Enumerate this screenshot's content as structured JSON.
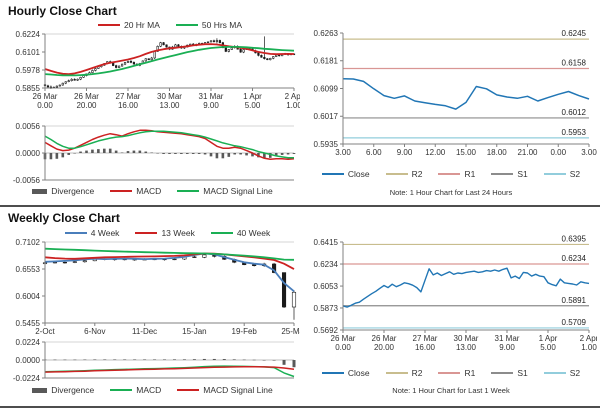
{
  "sections": [
    {
      "title": "Hourly Close Chart",
      "note": "Note: 1 Hour Chart for Last 24 Hours"
    },
    {
      "title": "Weekly Close Chart",
      "note": "Note: 1 Hour Chart for Last 1 Week"
    }
  ],
  "colors": {
    "red": "#cc2222",
    "green": "#1aaf54",
    "close_blue": "#2176b5",
    "week4_blue": "#4a7ebb",
    "r2_olive": "#c8bd8e",
    "r1_rose": "#d99694",
    "s1_gray": "#8c8c8c",
    "s2_lightblue": "#92cddc",
    "divergence_gray": "#595959",
    "candle_black": "#1a1a1a"
  },
  "chart_data": [
    {
      "id": "hourly-price",
      "type": "candlestick",
      "ylim": [
        0.5855,
        0.6224
      ],
      "yticks": [
        "0.6224",
        "0.6101",
        "0.5978",
        "0.5855"
      ],
      "xticks": [
        [
          "26 Mar",
          "0.00"
        ],
        [
          "26 Mar",
          "20.00"
        ],
        [
          "27 Mar",
          "16.00"
        ],
        [
          "30 Mar",
          "13.00"
        ],
        [
          "31 Mar",
          "9.00"
        ],
        [
          "1 Apr",
          "5.00"
        ],
        [
          "2 Apr",
          "1.00"
        ]
      ],
      "top_border": true,
      "candles": {
        "open0": 0.5878,
        "amp": 0.001,
        "specials": {
          "2": [
            0.5872,
            0.5848
          ],
          "58": [
            0.6195,
            0.616
          ],
          "74": [
            0.6208,
            0.605
          ]
        },
        "closes": [
          0.587,
          0.5862,
          0.5855,
          0.586,
          0.5868,
          0.5875,
          0.5888,
          0.5898,
          0.5905,
          0.5915,
          0.5908,
          0.5915,
          0.5928,
          0.594,
          0.5952,
          0.596,
          0.5975,
          0.5988,
          0.6,
          0.601,
          0.6022,
          0.6035,
          0.6028,
          0.6008,
          0.5995,
          0.6005,
          0.6018,
          0.603,
          0.6038,
          0.603,
          0.6018,
          0.601,
          0.6022,
          0.604,
          0.6055,
          0.6048,
          0.606,
          0.6105,
          0.614,
          0.6165,
          0.615,
          0.6135,
          0.612,
          0.6135,
          0.615,
          0.614,
          0.6128,
          0.6135,
          0.6148,
          0.6155,
          0.6145,
          0.6152,
          0.616,
          0.6155,
          0.6165,
          0.617,
          0.6178,
          0.6172,
          0.618,
          0.6165,
          0.613,
          0.6105,
          0.6118,
          0.613,
          0.614,
          0.612,
          0.61,
          0.6118,
          0.613,
          0.6122,
          0.611,
          0.6095,
          0.6078,
          0.6065,
          0.6055,
          0.6048,
          0.6058,
          0.607,
          0.608,
          0.6075,
          0.6085,
          0.609,
          0.6082,
          0.6088,
          0.6085
        ]
      },
      "series": [
        {
          "name": "20 Hr MA",
          "color": "#cc2222",
          "w": 1.8,
          "values": [
            0.5985,
            0.5972,
            0.596,
            0.5952,
            0.595,
            0.5955,
            0.5965,
            0.5978,
            0.5992,
            0.6005,
            0.6018,
            0.6028,
            0.6035,
            0.6042,
            0.605,
            0.606,
            0.6072,
            0.6088,
            0.6102,
            0.6112,
            0.612,
            0.6126,
            0.613,
            0.6135,
            0.614,
            0.6146,
            0.6151,
            0.6154,
            0.6155,
            0.6152,
            0.6146,
            0.614,
            0.6135,
            0.613,
            0.6122,
            0.6112,
            0.6102,
            0.6094,
            0.6088,
            0.6086,
            0.6087,
            0.6088,
            0.6087
          ]
        },
        {
          "name": "50 Hrs MA",
          "color": "#1aaf54",
          "w": 1.8,
          "values": [
            0.595,
            0.5947,
            0.5944,
            0.5942,
            0.5941,
            0.5941,
            0.5943,
            0.5946,
            0.595,
            0.5955,
            0.5961,
            0.5968,
            0.5976,
            0.5985,
            0.5995,
            0.6006,
            0.6017,
            0.6028,
            0.6039,
            0.605,
            0.606,
            0.607,
            0.608,
            0.609,
            0.61,
            0.6108,
            0.6116,
            0.6122,
            0.6128,
            0.6132,
            0.6135,
            0.6136,
            0.6136,
            0.6135,
            0.6133,
            0.613,
            0.6127,
            0.6123,
            0.612,
            0.6117,
            0.6114,
            0.6112,
            0.611
          ]
        }
      ]
    },
    {
      "id": "hourly-macd",
      "type": "bar+line",
      "ylim": [
        -0.0056,
        0.0056
      ],
      "yticks": [
        "0.0056",
        "0.0000",
        "-0.0056"
      ],
      "xticks": [],
      "top_border": true,
      "zero_line": true,
      "bars": {
        "name": "Divergence",
        "color": "#595959",
        "values": [
          -0.0013,
          -0.0013,
          -0.0012,
          -0.0009,
          -0.0004,
          0.0,
          0.0003,
          0.0005,
          0.0007,
          0.0008,
          0.0009,
          0.0009,
          0.0005,
          0.0001,
          0.0004,
          0.0005,
          0.0005,
          0.0003,
          0.0001,
          -0.0001,
          -0.0002,
          -0.0002,
          -0.0002,
          -0.0002,
          -0.0002,
          -0.0002,
          -0.0002,
          -0.0003,
          -0.0007,
          -0.0011,
          -0.0011,
          -0.0008,
          -0.0003,
          -0.0003,
          -0.0005,
          -0.0007,
          -0.0009,
          -0.0011,
          -0.001,
          -0.0006,
          -0.0004,
          -0.0003,
          -0.0002
        ]
      },
      "series": [
        {
          "name": "MACD",
          "color": "#cc2222",
          "w": 1.5,
          "values": [
            0.0022,
            0.0015,
            0.0008,
            0.0005,
            0.0006,
            0.001,
            0.0016,
            0.0022,
            0.0028,
            0.0033,
            0.0037,
            0.004,
            0.0038,
            0.0035,
            0.004,
            0.0044,
            0.0047,
            0.0047,
            0.0046,
            0.0044,
            0.0043,
            0.0042,
            0.0041,
            0.004,
            0.0038,
            0.0036,
            0.0034,
            0.003,
            0.0022,
            0.0014,
            0.001,
            0.001,
            0.0012,
            0.001,
            0.0005,
            0.0,
            -0.0006,
            -0.0011,
            -0.0013,
            -0.0012,
            -0.0012,
            -0.0013,
            -0.0012
          ]
        },
        {
          "name": "MACD Signal Line",
          "color": "#1aaf54",
          "w": 1.5,
          "values": [
            0.0035,
            0.0028,
            0.002,
            0.0014,
            0.001,
            0.001,
            0.0013,
            0.0017,
            0.0021,
            0.0025,
            0.0028,
            0.0031,
            0.0033,
            0.0034,
            0.0036,
            0.0039,
            0.0042,
            0.0044,
            0.0045,
            0.0045,
            0.0045,
            0.0044,
            0.0043,
            0.0042,
            0.004,
            0.0038,
            0.0036,
            0.0033,
            0.0029,
            0.0025,
            0.0021,
            0.0018,
            0.0015,
            0.0013,
            0.001,
            0.0007,
            0.0003,
            0.0,
            -0.0003,
            -0.0006,
            -0.0008,
            -0.001,
            -0.001
          ]
        }
      ]
    },
    {
      "id": "hourly-pivot",
      "type": "line",
      "ylim": [
        0.5935,
        0.6263
      ],
      "yticks": [
        "0.6263",
        "0.6181",
        "0.6099",
        "0.6017",
        "0.5935"
      ],
      "xticks": [
        [
          "3.00"
        ],
        [
          "6.00"
        ],
        [
          "9.00"
        ],
        [
          "12.00"
        ],
        [
          "15.00"
        ],
        [
          "18.00"
        ],
        [
          "21.00"
        ],
        [
          "0.00"
        ],
        [
          "3.00"
        ]
      ],
      "pivots": [
        {
          "label": "R2",
          "value": 0.6245,
          "text": "0.6245",
          "color": "#c8bd8e"
        },
        {
          "label": "R1",
          "value": 0.6158,
          "text": "0.6158",
          "color": "#d99694"
        },
        {
          "label": "S1",
          "value": 0.6012,
          "text": "0.6012",
          "color": "#8c8c8c"
        },
        {
          "label": "S2",
          "value": 0.5953,
          "text": "0.5953",
          "color": "#92cddc"
        }
      ],
      "series": [
        {
          "name": "Close",
          "color": "#2176b5",
          "w": 1.5,
          "values": [
            0.6128,
            0.6127,
            0.612,
            0.6098,
            0.6078,
            0.607,
            0.6077,
            0.6062,
            0.6057,
            0.6052,
            0.6048,
            0.6038,
            0.6058,
            0.6105,
            0.6098,
            0.608,
            0.6074,
            0.607,
            0.6076,
            0.6062,
            0.6072,
            0.6082,
            0.609,
            0.6078,
            0.6068
          ]
        }
      ]
    },
    {
      "id": "weekly-price",
      "type": "candlestick",
      "ylim": [
        0.5455,
        0.7102
      ],
      "yticks": [
        "0.7102",
        "0.6553",
        "0.6004",
        "0.5455"
      ],
      "xticks": [
        [
          "2-Oct"
        ],
        [
          "6-Nov"
        ],
        [
          "11-Dec"
        ],
        [
          "15-Jan"
        ],
        [
          "19-Feb"
        ],
        [
          "25-Mar"
        ]
      ],
      "top_border": true,
      "candles": {
        "open0": 0.666,
        "amp": 0.0035,
        "specials": {
          "24": [
            0.648,
            0.576
          ],
          "25": [
            0.612,
            0.552
          ]
        },
        "closes": [
          0.668,
          0.669,
          0.6685,
          0.67,
          0.672,
          0.676,
          0.6745,
          0.6755,
          0.674,
          0.675,
          0.6748,
          0.6755,
          0.6745,
          0.6755,
          0.68,
          0.679,
          0.684,
          0.681,
          0.675,
          0.669,
          0.664,
          0.662,
          0.6655,
          0.648,
          0.578,
          0.608
        ]
      },
      "series": [
        {
          "name": "4 Week",
          "color": "#4a7ebb",
          "w": 1.8,
          "values": [
            0.67,
            0.6708,
            0.6718,
            0.673,
            0.6748,
            0.6762,
            0.6755,
            0.6758,
            0.6765,
            0.676,
            0.6755,
            0.676,
            0.6765,
            0.6778,
            0.68,
            0.6838,
            0.6868,
            0.685,
            0.6795,
            0.674,
            0.669,
            0.666,
            0.664,
            0.6525,
            0.627,
            0.61
          ]
        },
        {
          "name": "13 Week",
          "color": "#cc2222",
          "w": 1.8,
          "values": [
            0.679,
            0.6775,
            0.6765,
            0.676,
            0.677,
            0.678,
            0.679,
            0.6795,
            0.68,
            0.6805,
            0.6808,
            0.681,
            0.6815,
            0.682,
            0.683,
            0.685,
            0.6868,
            0.6865,
            0.685,
            0.683,
            0.681,
            0.679,
            0.6765,
            0.6735,
            0.666,
            0.655
          ]
        },
        {
          "name": "40 Week",
          "color": "#1aaf54",
          "w": 1.8,
          "values": [
            0.6965,
            0.6958,
            0.695,
            0.6943,
            0.6935,
            0.6928,
            0.692,
            0.6913,
            0.6906,
            0.69,
            0.6895,
            0.689,
            0.6885,
            0.688,
            0.6875,
            0.6872,
            0.6868,
            0.686,
            0.685,
            0.6838,
            0.6825,
            0.681,
            0.679,
            0.6768,
            0.6745,
            0.674
          ]
        }
      ]
    },
    {
      "id": "weekly-macd",
      "type": "bar+line",
      "ylim": [
        -0.0224,
        0.0224
      ],
      "yticks": [
        "0.0224",
        "0.0000",
        "-0.0224"
      ],
      "xticks": [],
      "top_border": true,
      "zero_line": true,
      "bars": {
        "name": "Divergence",
        "color": "#595959",
        "values": [
          0.0005,
          0.0005,
          0.0005,
          0.0005,
          0.0006,
          0.0007,
          0.0007,
          0.0007,
          0.0007,
          0.0007,
          0.0007,
          0.0007,
          0.0007,
          0.0008,
          0.0008,
          0.001,
          0.0013,
          0.0013,
          0.0012,
          0.0008,
          0.0005,
          0.0003,
          0.0,
          -0.0007,
          -0.006,
          -0.009
        ]
      },
      "series": [
        {
          "name": "MACD",
          "color": "#1aaf54",
          "w": 1.5,
          "values": [
            -0.0145,
            -0.0143,
            -0.014,
            -0.0137,
            -0.0133,
            -0.0128,
            -0.0124,
            -0.012,
            -0.0117,
            -0.0113,
            -0.011,
            -0.0107,
            -0.0104,
            -0.01,
            -0.0096,
            -0.009,
            -0.0082,
            -0.0078,
            -0.0076,
            -0.0078,
            -0.008,
            -0.0082,
            -0.0086,
            -0.0095,
            -0.016,
            -0.0205
          ]
        },
        {
          "name": "MACD Signal Line",
          "color": "#cc2222",
          "w": 1.5,
          "values": [
            -0.015,
            -0.0148,
            -0.0145,
            -0.0142,
            -0.0139,
            -0.0135,
            -0.0131,
            -0.0127,
            -0.0124,
            -0.012,
            -0.0117,
            -0.0114,
            -0.0111,
            -0.0108,
            -0.0104,
            -0.01,
            -0.0095,
            -0.0091,
            -0.0088,
            -0.0086,
            -0.0085,
            -0.0085,
            -0.0086,
            -0.0088,
            -0.01,
            -0.0115
          ]
        }
      ]
    },
    {
      "id": "weekly-pivot",
      "type": "line",
      "ylim": [
        0.5692,
        0.6415
      ],
      "yticks": [
        "0.6415",
        "0.6234",
        "0.6053",
        "0.5873",
        "0.5692"
      ],
      "xticks": [
        [
          "26 Mar",
          "0.00"
        ],
        [
          "26 Mar",
          "20.00"
        ],
        [
          "27 Mar",
          "16.00"
        ],
        [
          "30 Mar",
          "13.00"
        ],
        [
          "31 Mar",
          "9.00"
        ],
        [
          "1 Apr",
          "5.00"
        ],
        [
          "2 Apr",
          "1.00"
        ]
      ],
      "pivots": [
        {
          "label": "R2",
          "value": 0.6395,
          "text": "0.6395",
          "color": "#c8bd8e"
        },
        {
          "label": "R1",
          "value": 0.6234,
          "text": "0.6234",
          "color": "#d99694"
        },
        {
          "label": "S1",
          "value": 0.5891,
          "text": "0.5891",
          "color": "#8c8c8c"
        },
        {
          "label": "S2",
          "value": 0.5709,
          "text": "0.5709",
          "color": "#92cddc"
        }
      ],
      "series": [
        {
          "name": "Close",
          "color": "#2176b5",
          "w": 1.4,
          "values": [
            0.589,
            0.588,
            0.5895,
            0.5912,
            0.592,
            0.5945,
            0.5968,
            0.599,
            0.601,
            0.6035,
            0.6058,
            0.604,
            0.6068,
            0.6048,
            0.6062,
            0.608,
            0.6072,
            0.606,
            0.604,
            0.6005,
            0.61,
            0.6195,
            0.6145,
            0.616,
            0.614,
            0.6155,
            0.617,
            0.615,
            0.616,
            0.6155,
            0.6165,
            0.617,
            0.6175,
            0.6165,
            0.617,
            0.618,
            0.6175,
            0.6185,
            0.6175,
            0.619,
            0.62,
            0.612,
            0.6135,
            0.6115,
            0.6165,
            0.616,
            0.6135,
            0.615,
            0.6135,
            0.613,
            0.608,
            0.6065,
            0.6055,
            0.611,
            0.608,
            0.6075,
            0.607,
            0.6062,
            0.6088,
            0.608,
            0.6075
          ]
        }
      ]
    }
  ]
}
